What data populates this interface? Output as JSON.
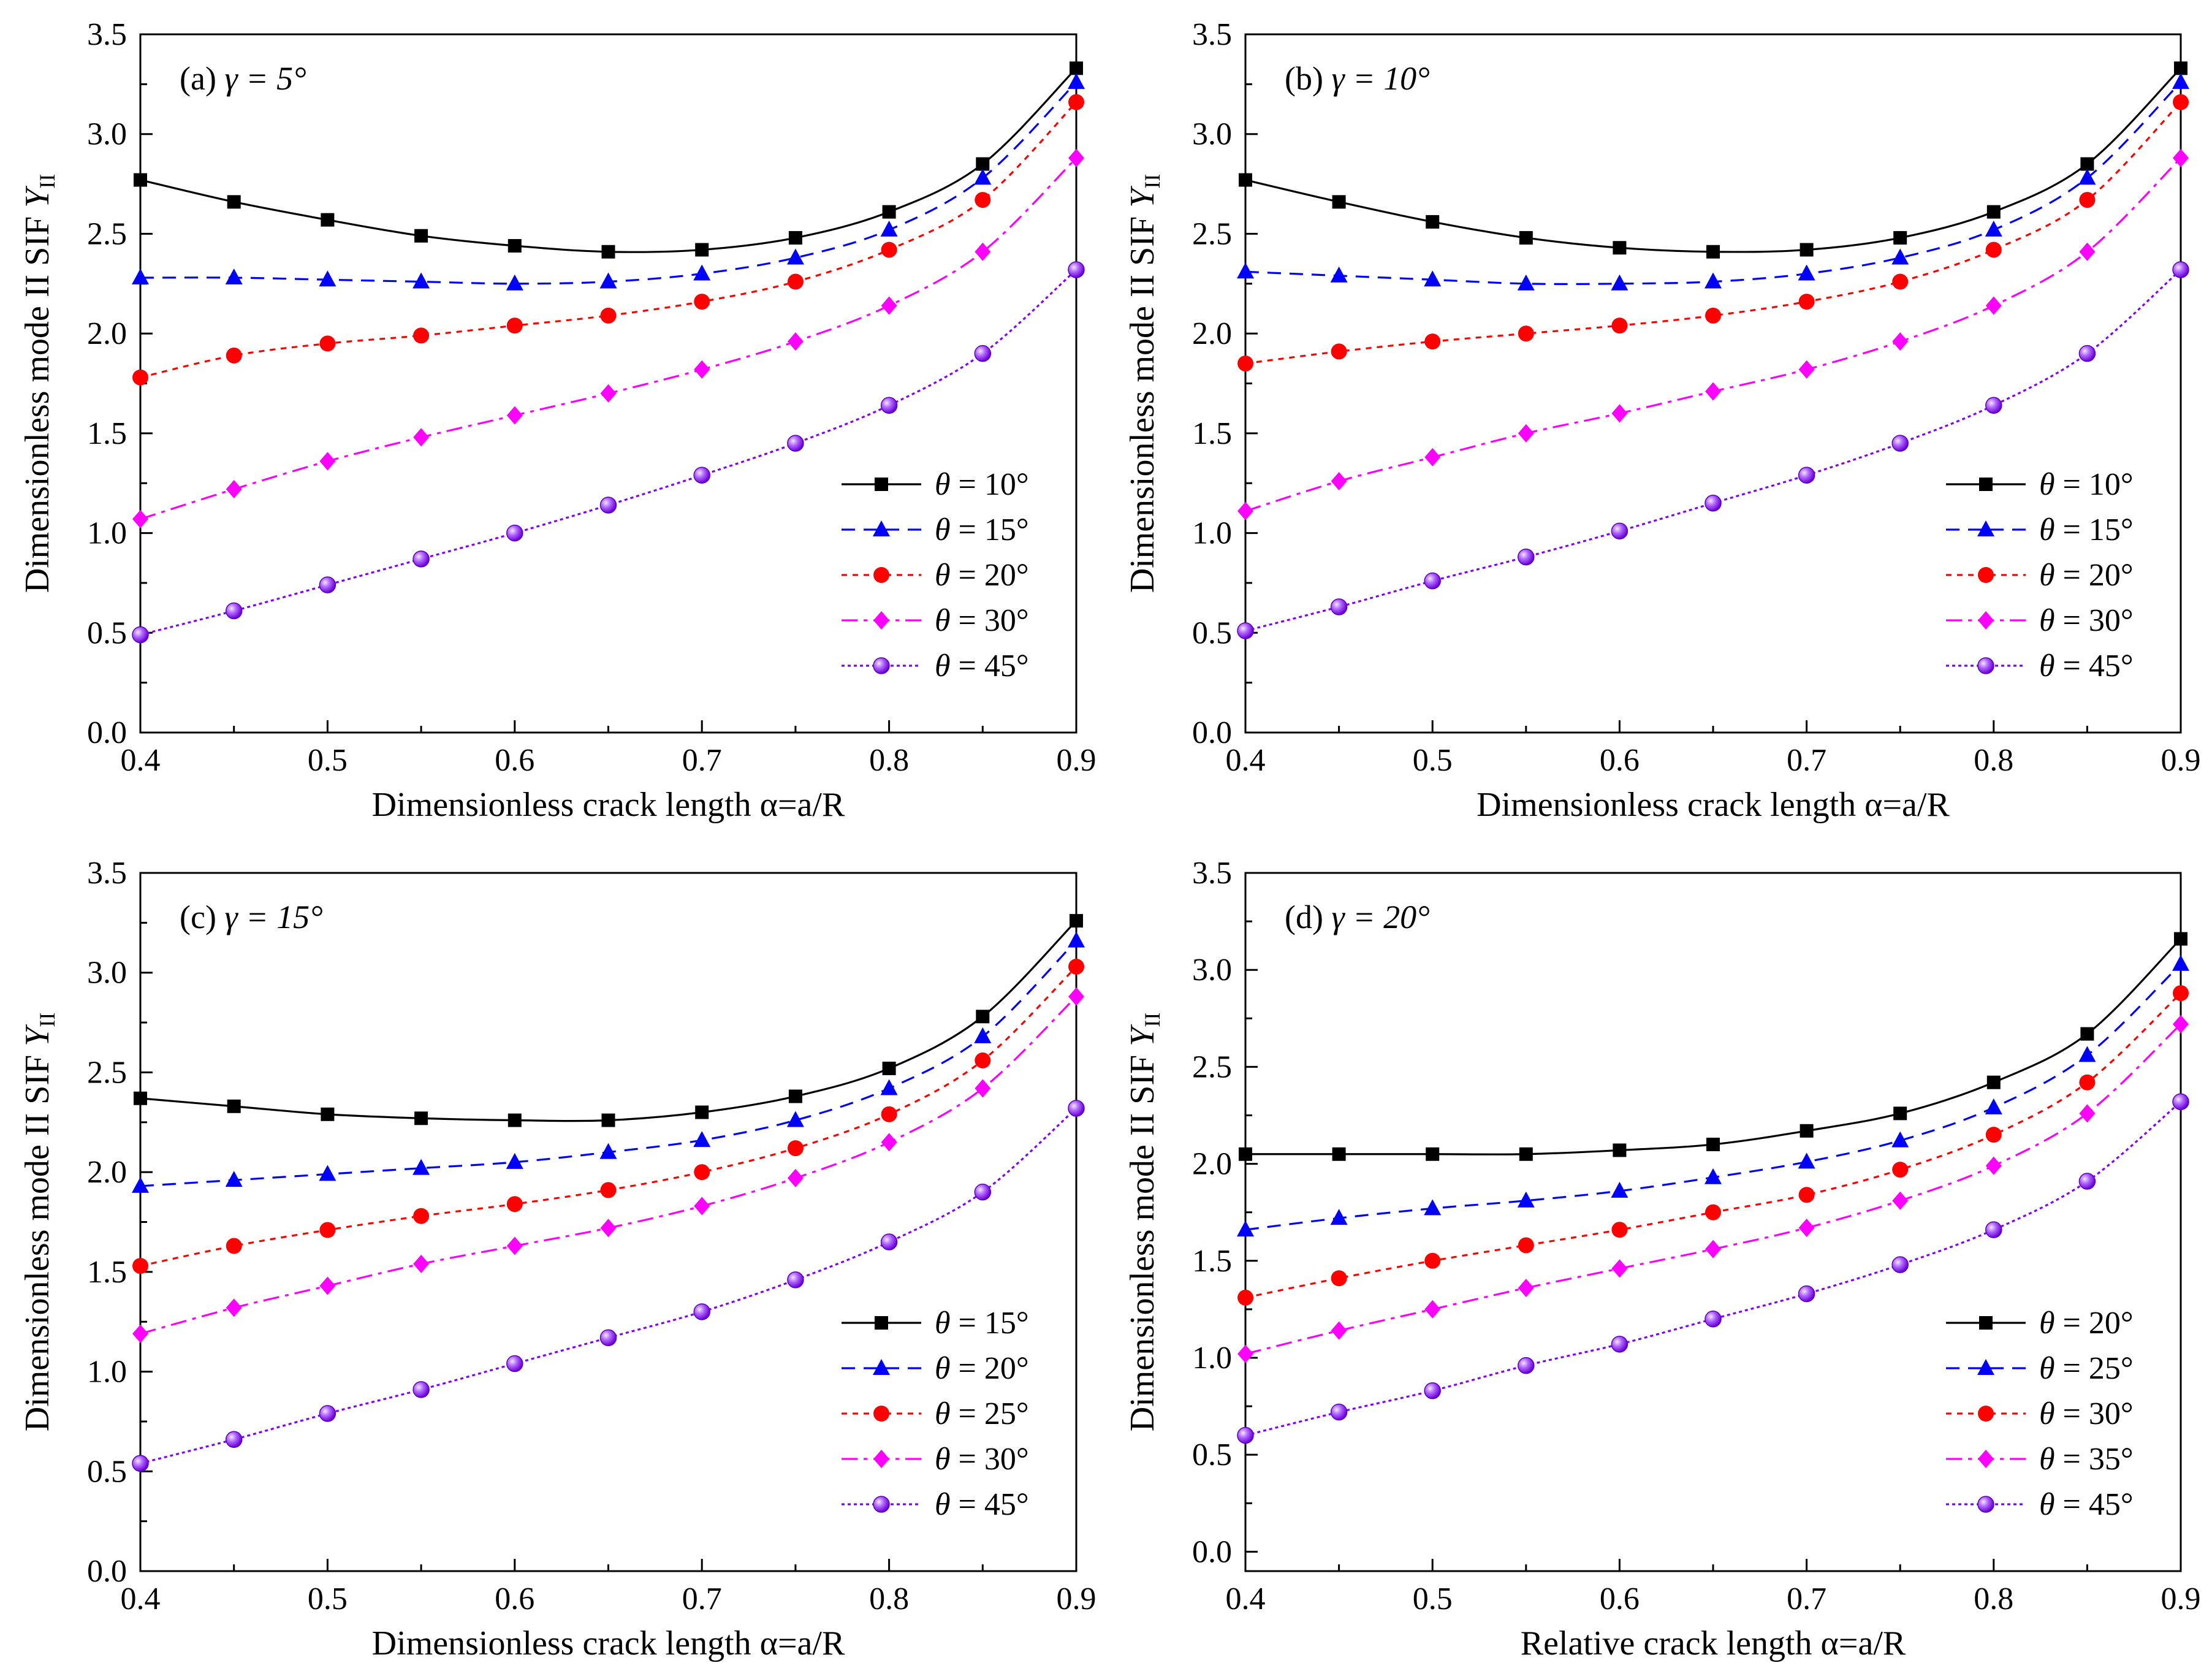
{
  "figure": {
    "description_free": true
  },
  "chart_data": [
    {
      "type": "line",
      "panel_label": "(a)",
      "title": "γ = 5°",
      "xlabel": "Dimensionless crack length α=a/R",
      "ylabel": "Dimensionless mode II SIF Y_II",
      "ylabel_main": "Dimensionless mode II SIF ",
      "ylabel_italic": "Y",
      "ylabel_sub": "II",
      "xlim": [
        0.4,
        0.9
      ],
      "ylim": [
        0.0,
        3.5
      ],
      "x_ticks": [
        "0.4",
        "0.5",
        "0.6",
        "0.7",
        "0.8",
        "0.9"
      ],
      "y_ticks": [
        "0.0",
        "0.5",
        "1.0",
        "1.5",
        "2.0",
        "2.5",
        "3.0",
        "3.5"
      ],
      "x": [
        0.4,
        0.45,
        0.5,
        0.55,
        0.6,
        0.65,
        0.7,
        0.75,
        0.8,
        0.85,
        0.9
      ],
      "legend_position": "center-right",
      "series": [
        {
          "name": "θ = 10°",
          "values": [
            2.77,
            2.66,
            2.57,
            2.49,
            2.44,
            2.41,
            2.42,
            2.48,
            2.61,
            2.85,
            3.33
          ]
        },
        {
          "name": "θ = 15°",
          "values": [
            2.28,
            2.28,
            2.27,
            2.26,
            2.25,
            2.26,
            2.3,
            2.38,
            2.52,
            2.78,
            3.26
          ]
        },
        {
          "name": "θ = 20°",
          "values": [
            1.78,
            1.89,
            1.95,
            1.99,
            2.04,
            2.09,
            2.16,
            2.26,
            2.42,
            2.67,
            3.16
          ]
        },
        {
          "name": "θ = 30°",
          "values": [
            1.07,
            1.22,
            1.36,
            1.48,
            1.59,
            1.7,
            1.82,
            1.96,
            2.14,
            2.41,
            2.88
          ]
        },
        {
          "name": "θ = 45°",
          "values": [
            0.49,
            0.61,
            0.74,
            0.87,
            1.0,
            1.14,
            1.29,
            1.45,
            1.64,
            1.9,
            2.32
          ]
        }
      ]
    },
    {
      "type": "line",
      "panel_label": "(b)",
      "title": "γ = 10°",
      "xlabel": "Dimensionless crack length α=a/R",
      "ylabel": "Dimensionless mode II SIF Y_II",
      "ylabel_main": "Dimensionless mode II SIF ",
      "ylabel_italic": "Y",
      "ylabel_sub": "II",
      "xlim": [
        0.4,
        0.9
      ],
      "ylim": [
        0.0,
        3.5
      ],
      "x_ticks": [
        "0.4",
        "0.5",
        "0.6",
        "0.7",
        "0.8",
        "0.9"
      ],
      "y_ticks": [
        "0.0",
        "0.5",
        "1.0",
        "1.5",
        "2.0",
        "2.5",
        "3.0",
        "3.5"
      ],
      "x": [
        0.4,
        0.45,
        0.5,
        0.55,
        0.6,
        0.65,
        0.7,
        0.75,
        0.8,
        0.85,
        0.9
      ],
      "legend_position": "center-right",
      "series": [
        {
          "name": "θ = 10°",
          "values": [
            2.77,
            2.66,
            2.56,
            2.48,
            2.43,
            2.41,
            2.42,
            2.48,
            2.61,
            2.85,
            3.33
          ]
        },
        {
          "name": "θ = 15°",
          "values": [
            2.31,
            2.29,
            2.27,
            2.25,
            2.25,
            2.26,
            2.3,
            2.38,
            2.52,
            2.78,
            3.26
          ]
        },
        {
          "name": "θ = 20°",
          "values": [
            1.85,
            1.91,
            1.96,
            2.0,
            2.04,
            2.09,
            2.16,
            2.26,
            2.42,
            2.67,
            3.16
          ]
        },
        {
          "name": "θ = 30°",
          "values": [
            1.11,
            1.26,
            1.38,
            1.5,
            1.6,
            1.71,
            1.82,
            1.96,
            2.14,
            2.41,
            2.88
          ]
        },
        {
          "name": "θ = 45°",
          "values": [
            0.51,
            0.63,
            0.76,
            0.88,
            1.01,
            1.15,
            1.29,
            1.45,
            1.64,
            1.9,
            2.32
          ]
        }
      ]
    },
    {
      "type": "line",
      "panel_label": "(c)",
      "title": "γ = 15°",
      "xlabel": "Dimensionless crack length α=a/R",
      "ylabel": "Dimensionless mode II SIF Y_II",
      "ylabel_main": "Dimensionless mode II SIF ",
      "ylabel_italic": "Y",
      "ylabel_sub": "II",
      "xlim": [
        0.4,
        0.9
      ],
      "ylim": [
        0.0,
        3.5
      ],
      "x_ticks": [
        "0.4",
        "0.5",
        "0.6",
        "0.7",
        "0.8",
        "0.9"
      ],
      "y_ticks": [
        "0.0",
        "0.5",
        "1.0",
        "1.5",
        "2.0",
        "2.5",
        "3.0",
        "3.5"
      ],
      "x": [
        0.4,
        0.45,
        0.5,
        0.55,
        0.6,
        0.65,
        0.7,
        0.75,
        0.8,
        0.85,
        0.9
      ],
      "legend_position": "center-right",
      "series": [
        {
          "name": "θ = 15°",
          "values": [
            2.37,
            2.33,
            2.29,
            2.27,
            2.26,
            2.26,
            2.3,
            2.38,
            2.52,
            2.78,
            3.26
          ]
        },
        {
          "name": "θ = 20°",
          "values": [
            1.93,
            1.96,
            1.99,
            2.02,
            2.05,
            2.1,
            2.16,
            2.26,
            2.42,
            2.68,
            3.16
          ]
        },
        {
          "name": "θ = 25°",
          "values": [
            1.53,
            1.63,
            1.71,
            1.78,
            1.84,
            1.91,
            2.0,
            2.12,
            2.29,
            2.56,
            3.03
          ]
        },
        {
          "name": "θ = 30°",
          "values": [
            1.19,
            1.32,
            1.43,
            1.54,
            1.63,
            1.72,
            1.83,
            1.97,
            2.15,
            2.42,
            2.88
          ]
        },
        {
          "name": "θ = 45°",
          "values": [
            0.54,
            0.66,
            0.79,
            0.91,
            1.04,
            1.17,
            1.3,
            1.46,
            1.65,
            1.9,
            2.32
          ]
        }
      ]
    },
    {
      "type": "line",
      "panel_label": "(d)",
      "title": "γ = 20°",
      "xlabel": "Relative crack length α=a/R",
      "ylabel": "Dimensionless mode II SIF Y_II",
      "ylabel_main": "Dimensionless mode II SIF ",
      "ylabel_italic": "Y",
      "ylabel_sub": "II",
      "xlim": [
        0.4,
        0.9
      ],
      "ylim": [
        -0.1,
        3.5
      ],
      "x_ticks": [
        "0.4",
        "0.5",
        "0.6",
        "0.7",
        "0.8",
        "0.9"
      ],
      "y_ticks": [
        "0.0",
        "0.5",
        "1.0",
        "1.5",
        "2.0",
        "2.5",
        "3.0",
        "3.5"
      ],
      "x": [
        0.4,
        0.45,
        0.5,
        0.55,
        0.6,
        0.65,
        0.7,
        0.75,
        0.8,
        0.85,
        0.9
      ],
      "legend_position": "center-right",
      "series": [
        {
          "name": "θ = 20°",
          "values": [
            2.05,
            2.05,
            2.05,
            2.05,
            2.07,
            2.1,
            2.17,
            2.26,
            2.42,
            2.67,
            3.16
          ]
        },
        {
          "name": "θ = 25°",
          "values": [
            1.66,
            1.72,
            1.77,
            1.81,
            1.86,
            1.93,
            2.01,
            2.12,
            2.29,
            2.56,
            3.03
          ]
        },
        {
          "name": "θ = 30°",
          "values": [
            1.31,
            1.41,
            1.5,
            1.58,
            1.66,
            1.75,
            1.84,
            1.97,
            2.15,
            2.42,
            2.88
          ]
        },
        {
          "name": "θ = 35°",
          "values": [
            1.02,
            1.14,
            1.25,
            1.36,
            1.46,
            1.56,
            1.67,
            1.81,
            1.99,
            2.26,
            2.72
          ]
        },
        {
          "name": "θ = 45°",
          "values": [
            0.6,
            0.72,
            0.83,
            0.96,
            1.07,
            1.2,
            1.33,
            1.48,
            1.66,
            1.91,
            2.32
          ]
        }
      ]
    }
  ],
  "series_styles": [
    {
      "color": "#000000",
      "dash": "",
      "marker": "square"
    },
    {
      "color": "#0000ff",
      "dash": "22,14",
      "marker": "triangle"
    },
    {
      "color": "#ff0000",
      "dash": "9,9",
      "marker": "circle"
    },
    {
      "color": "#ff00ff",
      "dash": "26,10,6,10",
      "marker": "diamond"
    },
    {
      "color": "#7f00ff",
      "dash": "5,5",
      "marker": "sphere"
    }
  ]
}
